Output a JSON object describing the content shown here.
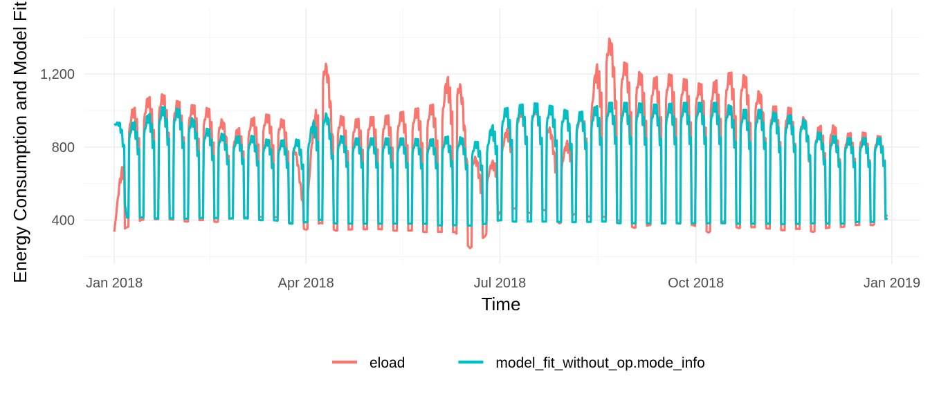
{
  "chart_data": {
    "type": "line",
    "title": "",
    "xlabel": "Time",
    "ylabel": "Energy Consumption and Model Fit",
    "x_range": [
      "2017-12-18",
      "2019-01-14"
    ],
    "ylim": [
      160,
      1560
    ],
    "y_ticks": [
      400,
      800,
      1200
    ],
    "y_tick_labels": [
      "400",
      "800",
      "1,200"
    ],
    "x_ticks": [
      "2018-01-01",
      "2018-04-01",
      "2018-07-01",
      "2018-10-01",
      "2019-01-01"
    ],
    "x_tick_labels": [
      "Jan 2018",
      "Apr 2018",
      "Jul 2018",
      "Oct 2018",
      "Jan 2019"
    ],
    "grid": true,
    "legend_position": "bottom",
    "series": [
      {
        "name": "eload",
        "color": "#F8766D",
        "x": [
          "2018-01-01",
          "2018-01-07",
          "2018-01-14",
          "2018-01-21",
          "2018-01-28",
          "2018-02-04",
          "2018-02-11",
          "2018-02-18",
          "2018-02-25",
          "2018-03-04",
          "2018-03-11",
          "2018-03-18",
          "2018-03-25",
          "2018-04-01",
          "2018-04-08",
          "2018-04-15",
          "2018-04-22",
          "2018-04-29",
          "2018-05-06",
          "2018-05-13",
          "2018-05-20",
          "2018-05-27",
          "2018-06-03",
          "2018-06-10",
          "2018-06-17",
          "2018-06-24",
          "2018-07-01",
          "2018-07-08",
          "2018-07-15",
          "2018-07-22",
          "2018-07-29",
          "2018-08-05",
          "2018-08-12",
          "2018-08-19",
          "2018-08-26",
          "2018-09-02",
          "2018-09-09",
          "2018-09-16",
          "2018-09-23",
          "2018-09-30",
          "2018-10-07",
          "2018-10-14",
          "2018-10-21",
          "2018-10-28",
          "2018-11-04",
          "2018-11-11",
          "2018-11-18",
          "2018-11-25",
          "2018-12-02",
          "2018-12-09",
          "2018-12-16",
          "2018-12-23",
          "2018-12-30"
        ],
        "high": [
          340,
          1000,
          1060,
          1120,
          1080,
          1050,
          1040,
          1010,
          880,
          950,
          1000,
          980,
          940,
          460,
          1420,
          1000,
          960,
          980,
          980,
          1000,
          1020,
          1040,
          1060,
          1340,
          820,
          640,
          820,
          1000,
          1050,
          1020,
          720,
          960,
          1050,
          1480,
          1300,
          1260,
          1180,
          1230,
          1200,
          1180,
          1150,
          1220,
          1240,
          1170,
          1040,
          1040,
          1020,
          900,
          960,
          880,
          900,
          880,
          860
        ],
        "low": [
          320,
          320,
          360,
          360,
          360,
          350,
          360,
          350,
          380,
          380,
          380,
          380,
          350,
          340,
          320,
          300,
          310,
          310,
          310,
          300,
          300,
          290,
          290,
          270,
          210,
          290,
          420,
          430,
          400,
          420,
          360,
          400,
          380,
          350,
          340,
          300,
          320,
          330,
          330,
          320,
          280,
          340,
          300,
          310,
          310,
          300,
          310,
          300,
          320,
          330,
          340,
          340,
          400
        ]
      },
      {
        "name": "model_fit_without_op.mode_info",
        "color": "#00BFC4",
        "x": [
          "2018-01-01",
          "2018-01-07",
          "2018-01-14",
          "2018-01-21",
          "2018-01-28",
          "2018-02-04",
          "2018-02-11",
          "2018-02-18",
          "2018-02-25",
          "2018-03-04",
          "2018-03-11",
          "2018-03-18",
          "2018-03-25",
          "2018-04-01",
          "2018-04-08",
          "2018-04-15",
          "2018-04-22",
          "2018-04-29",
          "2018-05-06",
          "2018-05-13",
          "2018-05-20",
          "2018-05-27",
          "2018-06-03",
          "2018-06-10",
          "2018-06-17",
          "2018-06-24",
          "2018-07-01",
          "2018-07-08",
          "2018-07-15",
          "2018-07-22",
          "2018-07-29",
          "2018-08-05",
          "2018-08-12",
          "2018-08-19",
          "2018-08-26",
          "2018-09-02",
          "2018-09-09",
          "2018-09-16",
          "2018-09-23",
          "2018-09-30",
          "2018-10-07",
          "2018-10-14",
          "2018-10-21",
          "2018-10-28",
          "2018-11-04",
          "2018-11-11",
          "2018-11-18",
          "2018-11-25",
          "2018-12-02",
          "2018-12-09",
          "2018-12-16",
          "2018-12-23",
          "2018-12-30"
        ],
        "high": [
          940,
          940,
          960,
          1030,
          1040,
          1000,
          920,
          900,
          860,
          880,
          860,
          840,
          860,
          840,
          1060,
          880,
          860,
          860,
          860,
          860,
          860,
          850,
          860,
          880,
          840,
          840,
          1020,
          1040,
          1060,
          1050,
          1030,
          1000,
          1020,
          1060,
          1060,
          1060,
          1050,
          1050,
          1060,
          1060,
          1060,
          1060,
          1020,
          1020,
          1020,
          980,
          1000,
          900,
          880,
          860,
          860,
          860,
          860
        ],
        "low": [
          840,
          380,
          380,
          370,
          370,
          370,
          380,
          380,
          380,
          380,
          370,
          370,
          350,
          360,
          360,
          350,
          350,
          350,
          350,
          350,
          350,
          350,
          340,
          340,
          340,
          350,
          360,
          350,
          350,
          350,
          350,
          350,
          350,
          350,
          340,
          340,
          340,
          340,
          340,
          340,
          340,
          340,
          340,
          340,
          340,
          340,
          340,
          350,
          350,
          350,
          360,
          360,
          380
        ]
      }
    ]
  },
  "legend": {
    "items": [
      {
        "label": "eload",
        "color": "#F8766D"
      },
      {
        "label": "model_fit_without_op.mode_info",
        "color": "#00BFC4"
      }
    ]
  }
}
